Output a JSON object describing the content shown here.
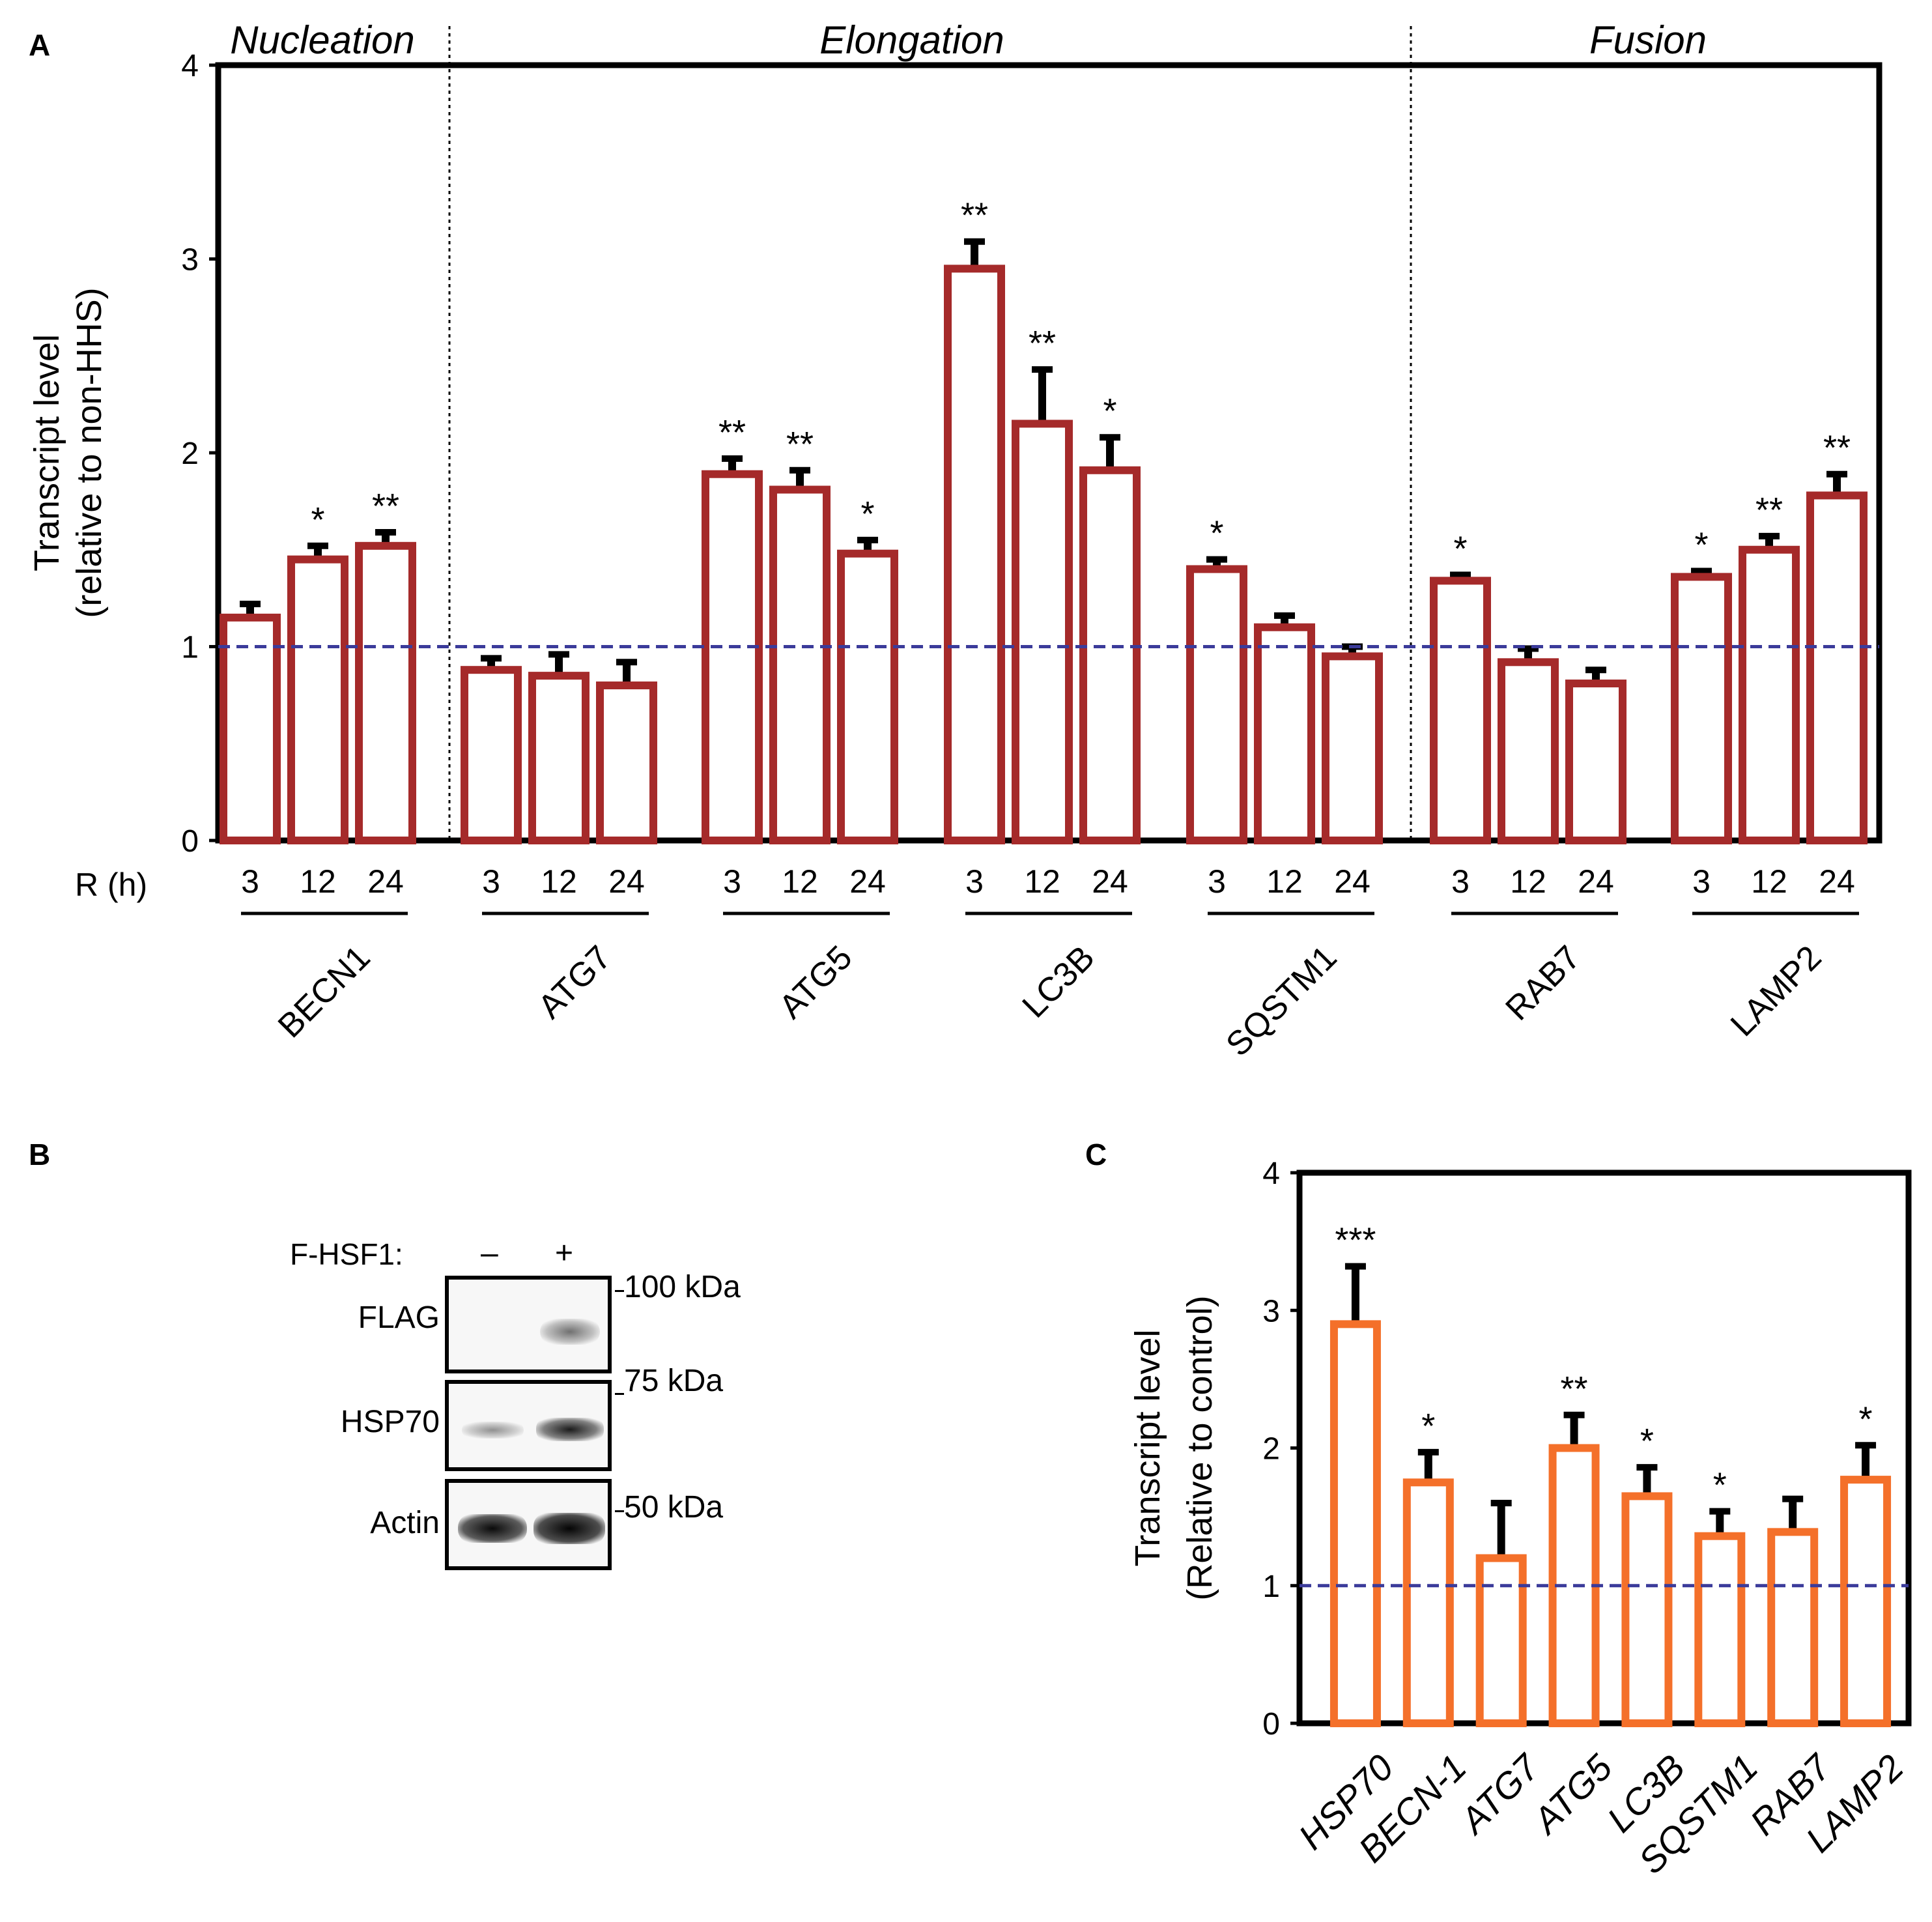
{
  "figure": {
    "panel_labels": {
      "a": "A",
      "b": "B",
      "c": "C"
    }
  },
  "chart_data": [
    {
      "id": "A",
      "type": "bar",
      "ylabel_line1": "Transcript level",
      "ylabel_line2": "(relative to non-HHS)",
      "xlabel": "R (h)",
      "ylim": [
        0,
        4
      ],
      "yticks": [
        0,
        1,
        2,
        3,
        4
      ],
      "reference_line": 1,
      "bar_color": "#a52a2a",
      "ref_line_color": "#3b3b9a",
      "sections": [
        {
          "title": "Nucleation",
          "genes": [
            "BECN1"
          ]
        },
        {
          "title": "Elongation",
          "genes": [
            "ATG7",
            "ATG5",
            "LC3B",
            "SQSTM1"
          ]
        },
        {
          "title": "Fusion",
          "genes": [
            "RAB7",
            "LAMP2"
          ]
        }
      ],
      "time_points": [
        "3",
        "12",
        "24"
      ],
      "groups": [
        {
          "gene": "BECN1",
          "values": [
            1.15,
            1.45,
            1.52
          ],
          "errors": [
            0.07,
            0.07,
            0.07
          ],
          "sig": [
            "",
            "*",
            "**"
          ]
        },
        {
          "gene": "ATG7",
          "values": [
            0.88,
            0.85,
            0.8
          ],
          "errors": [
            0.06,
            0.11,
            0.12
          ],
          "sig": [
            "",
            "",
            ""
          ]
        },
        {
          "gene": "ATG5",
          "values": [
            1.89,
            1.81,
            1.48
          ],
          "errors": [
            0.08,
            0.1,
            0.07
          ],
          "sig": [
            "**",
            "**",
            "*"
          ]
        },
        {
          "gene": "LC3B",
          "values": [
            2.95,
            2.15,
            1.91
          ],
          "errors": [
            0.14,
            0.28,
            0.17
          ],
          "sig": [
            "**",
            "**",
            "*"
          ]
        },
        {
          "gene": "SQSTM1",
          "values": [
            1.4,
            1.1,
            0.95
          ],
          "errors": [
            0.05,
            0.06,
            0.05
          ],
          "sig": [
            "*",
            "",
            ""
          ]
        },
        {
          "gene": "RAB7",
          "values": [
            1.34,
            0.92,
            0.81
          ],
          "errors": [
            0.03,
            0.07,
            0.07
          ],
          "sig": [
            "*",
            "",
            ""
          ]
        },
        {
          "gene": "LAMP2",
          "values": [
            1.36,
            1.5,
            1.78
          ],
          "errors": [
            0.03,
            0.07,
            0.11
          ],
          "sig": [
            "*",
            "**",
            "**"
          ]
        }
      ]
    },
    {
      "id": "C",
      "type": "bar",
      "ylabel_line1": "Transcript level",
      "ylabel_line2": "(Relative to control)",
      "ylim": [
        0,
        4
      ],
      "yticks": [
        0,
        1,
        2,
        3,
        4
      ],
      "reference_line": 1,
      "bar_color": "#f4702a",
      "ref_line_color": "#3b3b9a",
      "categories": [
        "HSP70",
        "BECN-1",
        "ATG7",
        "ATG5",
        "LC3B",
        "SQSTM1",
        "RAB7",
        "LAMP2"
      ],
      "values": [
        2.9,
        1.75,
        1.2,
        2.0,
        1.65,
        1.36,
        1.39,
        1.77
      ],
      "errors": [
        0.42,
        0.22,
        0.4,
        0.24,
        0.21,
        0.18,
        0.24,
        0.25
      ],
      "sig": [
        "***",
        "*",
        "",
        "**",
        "*",
        "*",
        "",
        "*"
      ]
    }
  ],
  "western_blot": {
    "condition_label": "F-HSF1:",
    "lanes": [
      "–",
      "+"
    ],
    "rows": [
      {
        "label": "FLAG",
        "marker": "100 kDa",
        "intensity": [
          0.0,
          0.55
        ]
      },
      {
        "label": "HSP70",
        "marker": "75 kDa",
        "intensity": [
          0.35,
          0.85
        ]
      },
      {
        "label": "Actin",
        "marker": "50 kDa",
        "intensity": [
          0.9,
          0.95
        ]
      }
    ]
  }
}
